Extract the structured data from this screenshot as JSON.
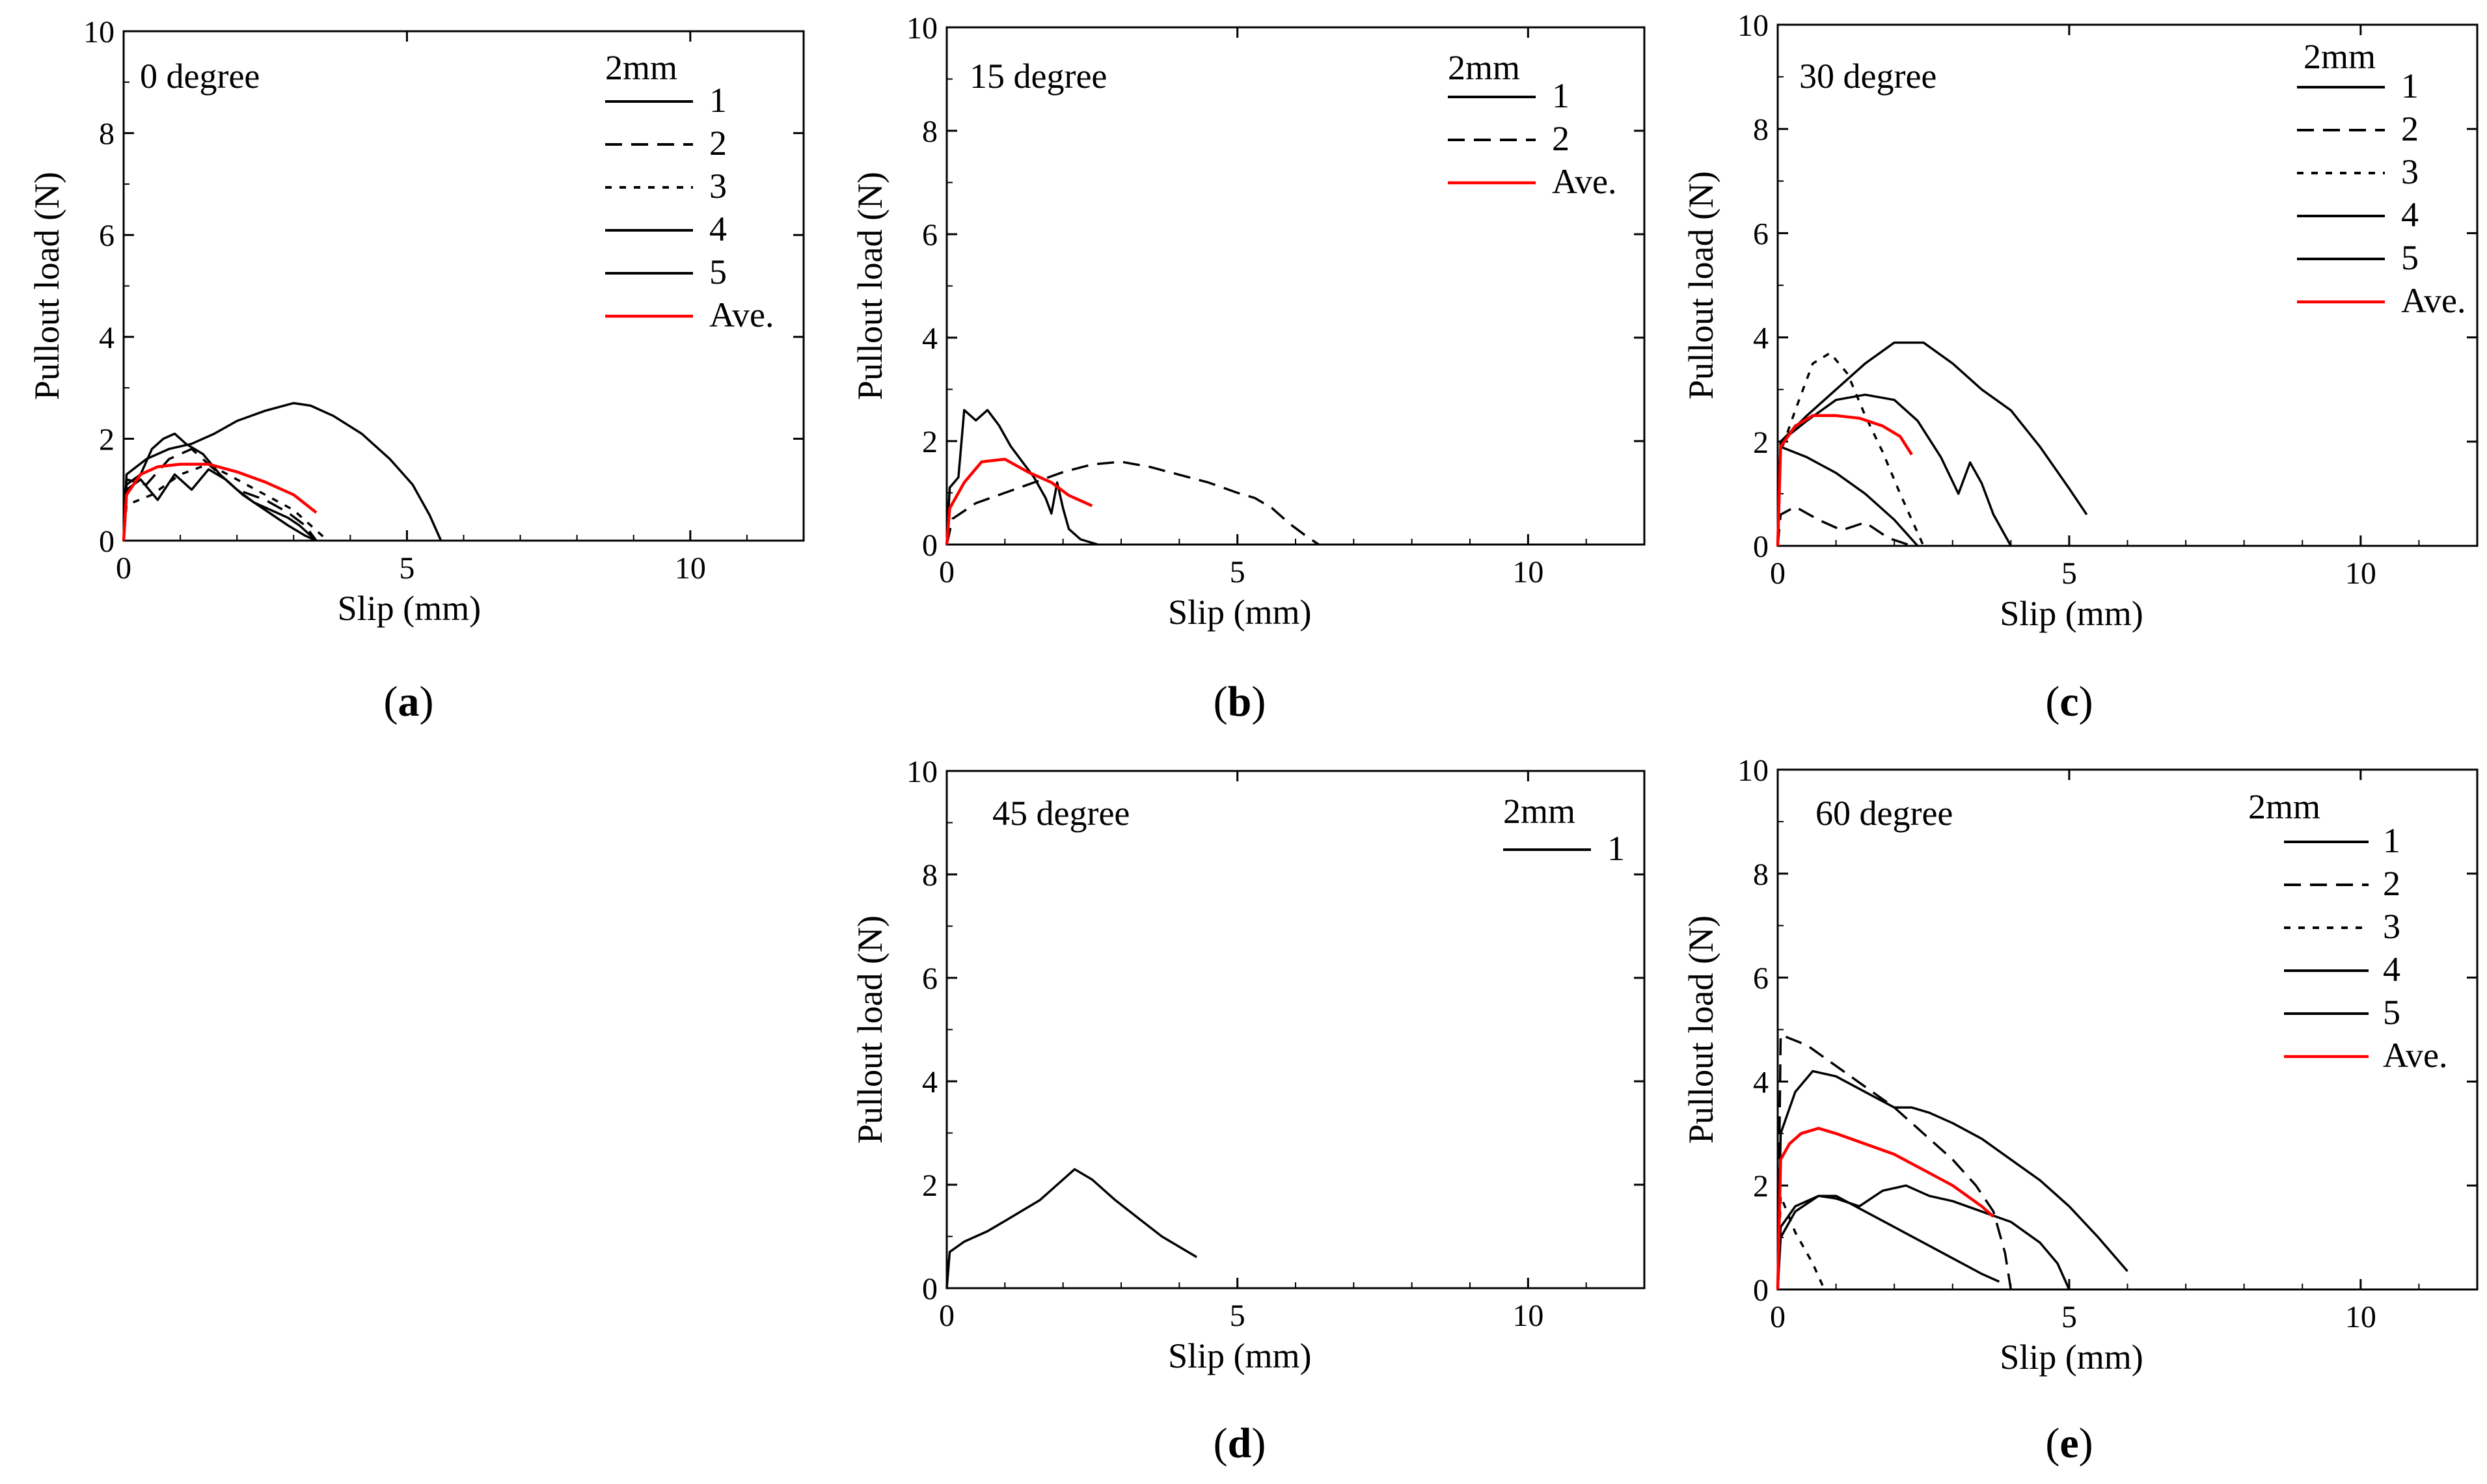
{
  "figure": {
    "panels": [
      "a",
      "b",
      "c",
      "d",
      "e"
    ]
  },
  "chart_data": [
    {
      "id": "a",
      "type": "line",
      "label": "a",
      "annotation": "0 degree",
      "legend_title": "2mm",
      "xlabel": "Slip (mm)",
      "ylabel": "Pullout load (N)",
      "xlim": [
        0,
        12
      ],
      "ylim": [
        0,
        10
      ],
      "xticks": [
        0,
        5,
        10
      ],
      "yticks": [
        0,
        2,
        4,
        6,
        8,
        10
      ],
      "series": [
        {
          "name": "1",
          "color": "#000000",
          "dash": "solid",
          "x": [
            0,
            0.05,
            0.3,
            0.5,
            0.7,
            0.9,
            1.1,
            1.4,
            1.7,
            2.0,
            2.3,
            2.6,
            2.9,
            3.1,
            3.4
          ],
          "y": [
            0,
            1.1,
            1.3,
            1.8,
            2.0,
            2.1,
            1.9,
            1.7,
            1.3,
            1.0,
            0.75,
            0.6,
            0.45,
            0.3,
            0
          ]
        },
        {
          "name": "2",
          "color": "#000000",
          "dash": "dashed",
          "x": [
            0,
            0.05,
            0.4,
            0.8,
            1.2,
            1.6,
            2.0,
            2.5,
            2.9,
            3.2,
            3.4
          ],
          "y": [
            0,
            1.2,
            1.1,
            1.6,
            1.8,
            1.4,
            1.0,
            0.8,
            0.55,
            0.3,
            0
          ]
        },
        {
          "name": "3",
          "color": "#000000",
          "dash": "dotted",
          "x": [
            0,
            0.05,
            0.5,
            1.0,
            1.5,
            2.0,
            2.5,
            3.0,
            3.4,
            3.6
          ],
          "y": [
            0,
            0.7,
            0.9,
            1.3,
            1.5,
            1.2,
            0.9,
            0.6,
            0.2,
            0
          ]
        },
        {
          "name": "4",
          "color": "#000000",
          "dash": "solid",
          "x": [
            0,
            0.05,
            0.3,
            0.6,
            0.9,
            1.2,
            1.5,
            1.8,
            2.1,
            2.5,
            2.9,
            3.2,
            3.4
          ],
          "y": [
            0,
            1.0,
            1.2,
            0.8,
            1.3,
            1.0,
            1.4,
            1.2,
            0.9,
            0.6,
            0.3,
            0.1,
            0
          ]
        },
        {
          "name": "5",
          "color": "#000000",
          "dash": "solid",
          "x": [
            0,
            0.05,
            0.4,
            0.8,
            1.2,
            1.6,
            2.0,
            2.5,
            3.0,
            3.3,
            3.7,
            4.2,
            4.7,
            5.1,
            5.4,
            5.6
          ],
          "y": [
            0,
            1.3,
            1.6,
            1.8,
            1.9,
            2.1,
            2.35,
            2.55,
            2.7,
            2.65,
            2.45,
            2.1,
            1.6,
            1.1,
            0.5,
            0
          ]
        },
        {
          "name": "Ave.",
          "color": "#ff0000",
          "dash": "solid",
          "x": [
            0,
            0.05,
            0.3,
            0.6,
            1.0,
            1.5,
            2.0,
            2.5,
            3.0,
            3.4
          ],
          "y": [
            0,
            0.9,
            1.3,
            1.45,
            1.5,
            1.5,
            1.35,
            1.15,
            0.9,
            0.55
          ]
        }
      ]
    },
    {
      "id": "b",
      "type": "line",
      "label": "b",
      "annotation": "15 degree",
      "legend_title": "2mm",
      "xlabel": "Slip (mm)",
      "ylabel": "Pullout load (N)",
      "xlim": [
        0,
        12
      ],
      "ylim": [
        0,
        10
      ],
      "xticks": [
        0,
        5,
        10
      ],
      "yticks": [
        0,
        2,
        4,
        6,
        8,
        10
      ],
      "series": [
        {
          "name": "1",
          "color": "#000000",
          "dash": "solid",
          "x": [
            0,
            0.05,
            0.2,
            0.3,
            0.5,
            0.7,
            0.9,
            1.1,
            1.3,
            1.5,
            1.7,
            1.8,
            1.9,
            2.0,
            2.1,
            2.3,
            2.6
          ],
          "y": [
            0,
            1.1,
            1.3,
            2.6,
            2.4,
            2.6,
            2.3,
            1.9,
            1.6,
            1.3,
            0.9,
            0.6,
            1.2,
            0.7,
            0.3,
            0.1,
            0
          ]
        },
        {
          "name": "2",
          "color": "#000000",
          "dash": "dashed",
          "x": [
            0,
            0.1,
            0.5,
            1.0,
            1.5,
            2.0,
            2.5,
            3.0,
            3.5,
            4.0,
            4.5,
            5.0,
            5.3,
            5.6,
            5.9,
            6.2,
            6.4
          ],
          "y": [
            0,
            0.5,
            0.8,
            1.0,
            1.2,
            1.4,
            1.55,
            1.6,
            1.5,
            1.35,
            1.2,
            1.0,
            0.9,
            0.7,
            0.4,
            0.15,
            0
          ]
        },
        {
          "name": "Ave.",
          "color": "#ff0000",
          "dash": "solid",
          "x": [
            0,
            0.05,
            0.3,
            0.6,
            1.0,
            1.4,
            1.8,
            2.1,
            2.5
          ],
          "y": [
            0,
            0.7,
            1.2,
            1.6,
            1.65,
            1.4,
            1.2,
            0.95,
            0.75
          ]
        }
      ]
    },
    {
      "id": "c",
      "type": "line",
      "label": "c",
      "annotation": "30 degree",
      "legend_title": "2mm",
      "xlabel": "Slip (mm)",
      "ylabel": "Pullout load (N)",
      "xlim": [
        0,
        12
      ],
      "ylim": [
        0,
        10
      ],
      "xticks": [
        0,
        5,
        10
      ],
      "yticks": [
        0,
        2,
        4,
        6,
        8,
        10
      ],
      "series": [
        {
          "name": "1",
          "color": "#000000",
          "dash": "solid",
          "x": [
            0,
            0.05,
            0.5,
            1.0,
            1.5,
            2.0,
            2.4
          ],
          "y": [
            0,
            1.9,
            1.7,
            1.4,
            1.0,
            0.5,
            0
          ]
        },
        {
          "name": "2",
          "color": "#000000",
          "dash": "dashed",
          "x": [
            0,
            0.05,
            0.3,
            0.7,
            1.1,
            1.5,
            1.9,
            2.3
          ],
          "y": [
            0,
            0.6,
            0.75,
            0.5,
            0.3,
            0.45,
            0.15,
            0
          ]
        },
        {
          "name": "3",
          "color": "#000000",
          "dash": "dotted",
          "x": [
            0,
            0.05,
            0.3,
            0.6,
            0.9,
            1.2,
            1.5,
            1.8,
            2.1,
            2.5
          ],
          "y": [
            0,
            1.8,
            2.6,
            3.5,
            3.7,
            3.3,
            2.5,
            1.8,
            1.0,
            0
          ]
        },
        {
          "name": "4",
          "color": "#000000",
          "dash": "solid",
          "x": [
            0,
            0.05,
            0.5,
            1.0,
            1.5,
            2.0,
            2.5,
            3.0,
            3.5,
            4.0,
            4.5,
            5.0,
            5.3
          ],
          "y": [
            0,
            2.0,
            2.5,
            3.0,
            3.5,
            3.9,
            3.9,
            3.5,
            3.0,
            2.6,
            1.9,
            1.1,
            0.6
          ]
        },
        {
          "name": "5",
          "color": "#000000",
          "dash": "solid",
          "x": [
            0,
            0.05,
            0.5,
            1.0,
            1.5,
            2.0,
            2.4,
            2.8,
            3.1,
            3.3,
            3.5,
            3.7,
            3.9,
            4.0
          ],
          "y": [
            0,
            2.0,
            2.4,
            2.8,
            2.9,
            2.8,
            2.4,
            1.7,
            1.0,
            1.6,
            1.2,
            0.6,
            0.2,
            0
          ]
        },
        {
          "name": "Ave.",
          "color": "#ff0000",
          "dash": "solid",
          "x": [
            0,
            0.05,
            0.3,
            0.6,
            1.0,
            1.4,
            1.8,
            2.1,
            2.3
          ],
          "y": [
            0,
            1.9,
            2.3,
            2.5,
            2.5,
            2.45,
            2.3,
            2.1,
            1.75
          ]
        }
      ]
    },
    {
      "id": "d",
      "type": "line",
      "label": "d",
      "annotation": "45 degree",
      "legend_title": "2mm",
      "xlabel": "Slip (mm)",
      "ylabel": "Pullout load (N)",
      "xlim": [
        0,
        12
      ],
      "ylim": [
        0,
        10
      ],
      "xticks": [
        0,
        5,
        10
      ],
      "yticks": [
        0,
        2,
        4,
        6,
        8,
        10
      ],
      "series": [
        {
          "name": "1",
          "color": "#000000",
          "dash": "solid",
          "x": [
            0,
            0.05,
            0.3,
            0.7,
            1.0,
            1.3,
            1.6,
            1.9,
            2.2,
            2.5,
            2.9,
            3.3,
            3.7,
            4.0,
            4.3
          ],
          "y": [
            0,
            0.7,
            0.9,
            1.1,
            1.3,
            1.5,
            1.7,
            2.0,
            2.3,
            2.1,
            1.7,
            1.35,
            1.0,
            0.8,
            0.6
          ]
        }
      ]
    },
    {
      "id": "e",
      "type": "line",
      "label": "e",
      "annotation": "60 degree",
      "legend_title": "2mm",
      "xlabel": "Slip (mm)",
      "ylabel": "Pullout load (N)",
      "xlim": [
        0,
        12
      ],
      "ylim": [
        0,
        10
      ],
      "xticks": [
        0,
        5,
        10
      ],
      "yticks": [
        0,
        2,
        4,
        6,
        8,
        10
      ],
      "series": [
        {
          "name": "1",
          "color": "#000000",
          "dash": "solid",
          "x": [
            0,
            0.05,
            0.3,
            0.7,
            1.0,
            1.5,
            2.0,
            2.5,
            3.0,
            3.5,
            3.8
          ],
          "y": [
            0,
            1.2,
            1.6,
            1.8,
            1.8,
            1.5,
            1.2,
            0.9,
            0.6,
            0.3,
            0.15
          ]
        },
        {
          "name": "2",
          "color": "#000000",
          "dash": "dashed",
          "x": [
            0,
            0.05,
            0.5,
            1.0,
            1.5,
            2.0,
            2.5,
            3.0,
            3.4,
            3.7,
            3.9,
            4.0
          ],
          "y": [
            0,
            4.9,
            4.7,
            4.3,
            3.9,
            3.5,
            3.0,
            2.5,
            2.0,
            1.5,
            0.7,
            0
          ]
        },
        {
          "name": "3",
          "color": "#000000",
          "dash": "dotted",
          "x": [
            0,
            0.05,
            0.3,
            0.6,
            0.8
          ],
          "y": [
            0,
            1.8,
            1.1,
            0.5,
            0
          ]
        },
        {
          "name": "4",
          "color": "#000000",
          "dash": "solid",
          "x": [
            0,
            0.05,
            0.3,
            0.6,
            1.0,
            1.5,
            2.0,
            2.3,
            2.6,
            3.0,
            3.5,
            4.0,
            4.5,
            5.0,
            5.5,
            6.0
          ],
          "y": [
            0,
            3.0,
            3.8,
            4.2,
            4.1,
            3.8,
            3.5,
            3.5,
            3.4,
            3.2,
            2.9,
            2.5,
            2.1,
            1.6,
            1.0,
            0.35
          ]
        },
        {
          "name": "5",
          "color": "#000000",
          "dash": "solid",
          "x": [
            0,
            0.05,
            0.3,
            0.7,
            1.0,
            1.4,
            1.8,
            2.2,
            2.6,
            3.0,
            3.5,
            4.0,
            4.5,
            4.8,
            5.0
          ],
          "y": [
            0,
            1.0,
            1.5,
            1.8,
            1.75,
            1.6,
            1.9,
            2.0,
            1.8,
            1.7,
            1.5,
            1.3,
            0.9,
            0.5,
            0
          ]
        },
        {
          "name": "Ave.",
          "color": "#ff0000",
          "dash": "solid",
          "x": [
            0,
            0.05,
            0.2,
            0.4,
            0.7,
            1.0,
            1.5,
            2.0,
            2.5,
            3.0,
            3.5,
            3.7
          ],
          "y": [
            0,
            2.5,
            2.8,
            3.0,
            3.1,
            3.0,
            2.8,
            2.6,
            2.3,
            2.0,
            1.6,
            1.4
          ]
        }
      ]
    }
  ]
}
